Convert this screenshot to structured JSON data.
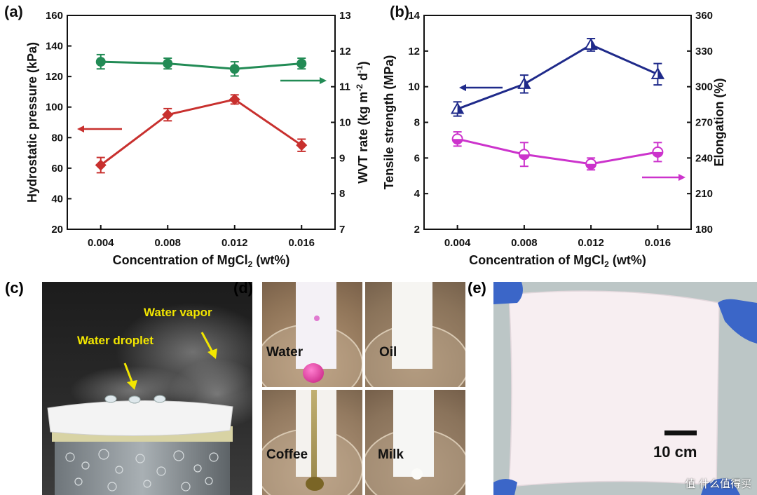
{
  "panels": {
    "a": "(a)",
    "b": "(b)",
    "c": "(c)",
    "d": "(d)",
    "e": "(e)"
  },
  "chart_data": [
    {
      "type": "line",
      "panel": "(a)",
      "xlabel": "Concentration of MgCl2 (wt%)",
      "x": [
        0.004,
        0.008,
        0.012,
        0.016
      ],
      "xticks": [
        "0.004",
        "0.008",
        "0.012",
        "0.016"
      ],
      "ylabel": "Hydrostatic pressure (kPa)",
      "ylim": [
        20,
        160
      ],
      "yticks": [
        "20",
        "40",
        "60",
        "80",
        "100",
        "120",
        "140",
        "160"
      ],
      "y2label": "WVT rate (kg m-2 d-1)",
      "y2lim": [
        7,
        13
      ],
      "y2ticks": [
        "7",
        "8",
        "9",
        "10",
        "11",
        "12",
        "13"
      ],
      "series": [
        {
          "axis": "left",
          "color": "#c8302e",
          "marker": "diamond",
          "values": [
            62,
            95,
            105,
            75
          ],
          "errors": [
            5,
            4,
            3,
            4
          ]
        },
        {
          "axis": "right",
          "color": "#228b55",
          "marker": "circle",
          "values": [
            11.7,
            11.65,
            11.5,
            11.65
          ],
          "errors": [
            0.2,
            0.15,
            0.2,
            0.15
          ]
        }
      ],
      "arrows": [
        {
          "direction": "left",
          "color": "#c8302e"
        },
        {
          "direction": "right",
          "color": "#228b55"
        }
      ]
    },
    {
      "type": "line",
      "panel": "(b)",
      "xlabel": "Concentration of MgCl2 (wt%)",
      "x": [
        0.004,
        0.008,
        0.012,
        0.016
      ],
      "xticks": [
        "0.004",
        "0.008",
        "0.012",
        "0.016"
      ],
      "ylabel": "Tensile strength (MPa)",
      "ylim": [
        2,
        14
      ],
      "yticks": [
        "2",
        "4",
        "6",
        "8",
        "10",
        "12",
        "14"
      ],
      "y2label": "Elongation (%)",
      "y2lim": [
        180,
        360
      ],
      "y2ticks": [
        "180",
        "210",
        "240",
        "270",
        "300",
        "330",
        "360"
      ],
      "series": [
        {
          "axis": "left",
          "color": "#1f2a8a",
          "marker": "half-triangle",
          "values": [
            8.75,
            10.15,
            12.35,
            10.7
          ],
          "errors": [
            0.4,
            0.5,
            0.35,
            0.6
          ]
        },
        {
          "axis": "right",
          "color": "#cc33cc",
          "marker": "half-circle",
          "values": [
            256,
            243,
            235,
            245
          ],
          "errors": [
            6,
            10,
            5,
            8
          ]
        }
      ],
      "arrows": [
        {
          "direction": "left",
          "color": "#1f2a8a"
        },
        {
          "direction": "right",
          "color": "#cc33cc"
        }
      ]
    }
  ],
  "photo_c": {
    "label_vapor": "Water vapor",
    "label_droplet": "Water droplet"
  },
  "photo_d": {
    "labels": [
      "Water",
      "Oil",
      "Coffee",
      "Milk"
    ]
  },
  "photo_e": {
    "scale": "10 cm"
  },
  "watermark": "值 什么值得买",
  "colors": {
    "red": "#c8302e",
    "green": "#228b55",
    "navy": "#1f2a8a",
    "magenta": "#cc33cc",
    "yellow": "#f2e600"
  }
}
